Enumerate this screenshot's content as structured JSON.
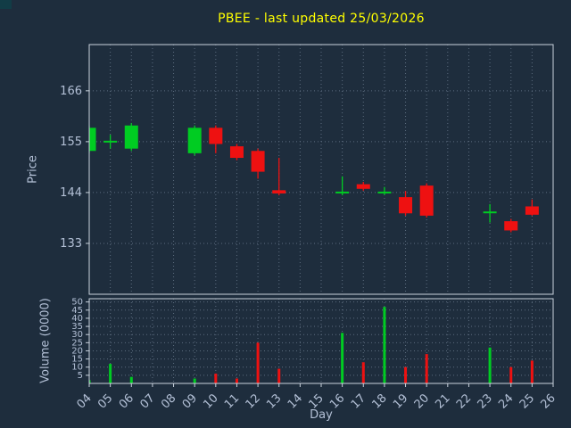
{
  "chart_data": {
    "type": "candlestick",
    "title": "PBEE - last updated 25/03/2026",
    "xlabel": "Day",
    "price_ylabel": "Price",
    "volume_ylabel": "Volume (0000)",
    "legend": "none",
    "grid": "dotted",
    "categories": [
      "04",
      "05",
      "06",
      "07",
      "08",
      "09",
      "10",
      "11",
      "12",
      "13",
      "14",
      "15",
      "16",
      "17",
      "18",
      "19",
      "20",
      "21",
      "22",
      "23",
      "24",
      "25",
      "26"
    ],
    "price_axis": {
      "ticks": [
        166,
        155,
        144,
        133
      ],
      "min": 122,
      "max": 176
    },
    "volume_axis": {
      "ticks": [
        50,
        45,
        40,
        35,
        30,
        25,
        20,
        15,
        10,
        5
      ],
      "min": 0,
      "max": 52
    },
    "colors": {
      "background": "#1e2d3d",
      "title": "#ffff00",
      "axis_text": "#b3c0d6",
      "grid": "#8fa0b4",
      "border": "#c9d2dd",
      "up": "#00cc22",
      "down": "#ee1111"
    },
    "candles": [
      {
        "day": "04",
        "open": 153.0,
        "high": 158.5,
        "low": 152.5,
        "close": 158.0,
        "volume": 2
      },
      {
        "day": "05",
        "open": 155.0,
        "high": 156.5,
        "low": 153.5,
        "close": 155.2,
        "volume": 12
      },
      {
        "day": "06",
        "open": 153.5,
        "high": 159.0,
        "low": 153.0,
        "close": 158.5,
        "volume": 4
      },
      {
        "day": "09",
        "open": 152.5,
        "high": 158.5,
        "low": 152.0,
        "close": 158.0,
        "volume": 3
      },
      {
        "day": "10",
        "open": 158.0,
        "high": 158.5,
        "low": 152.5,
        "close": 154.5,
        "volume": 6
      },
      {
        "day": "11",
        "open": 154.0,
        "high": 154.5,
        "low": 151.0,
        "close": 151.5,
        "volume": 3
      },
      {
        "day": "12",
        "open": 153.0,
        "high": 153.5,
        "low": 147.0,
        "close": 148.5,
        "volume": 25
      },
      {
        "day": "13",
        "open": 144.5,
        "high": 151.5,
        "low": 143.4,
        "close": 143.8,
        "volume": 9
      },
      {
        "day": "16",
        "open": 144.0,
        "high": 147.5,
        "low": 143.4,
        "close": 144.2,
        "volume": 31
      },
      {
        "day": "17",
        "open": 145.8,
        "high": 146.3,
        "low": 144.4,
        "close": 144.8,
        "volume": 13
      },
      {
        "day": "18",
        "open": 144.0,
        "high": 145.2,
        "low": 143.5,
        "close": 144.2,
        "volume": 47
      },
      {
        "day": "19",
        "open": 143.0,
        "high": 144.3,
        "low": 139.0,
        "close": 139.5,
        "volume": 10
      },
      {
        "day": "20",
        "open": 145.5,
        "high": 146.0,
        "low": 138.6,
        "close": 139.0,
        "volume": 18
      },
      {
        "day": "23",
        "open": 139.6,
        "high": 141.5,
        "low": 137.5,
        "close": 139.9,
        "volume": 22
      },
      {
        "day": "24",
        "open": 137.8,
        "high": 138.3,
        "low": 135.4,
        "close": 135.8,
        "volume": 10
      },
      {
        "day": "25",
        "open": 141.0,
        "high": 142.5,
        "low": 139.0,
        "close": 139.2,
        "volume": 14
      }
    ]
  }
}
